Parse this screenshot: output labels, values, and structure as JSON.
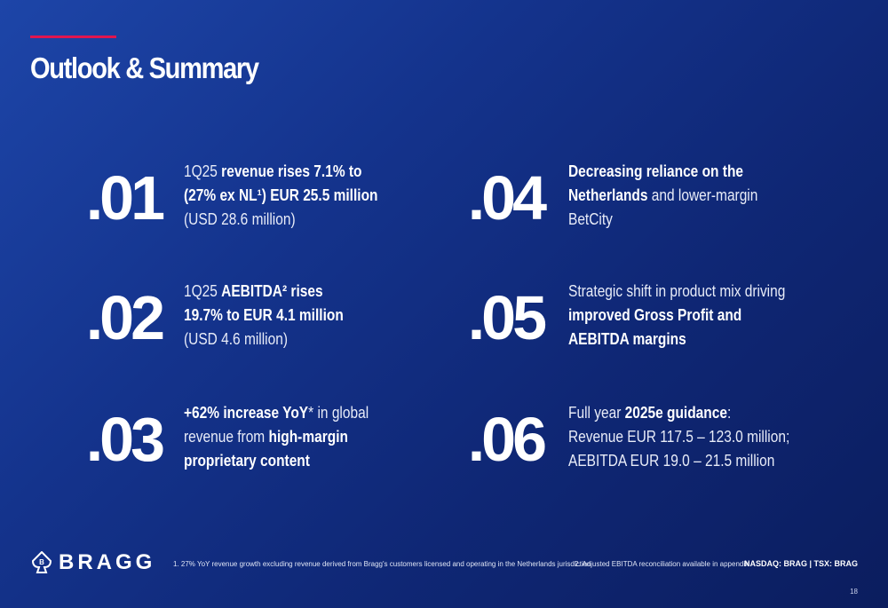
{
  "title": "Outlook & Summary",
  "items": [
    {
      "number": ".01",
      "lines": [
        [
          {
            "text": "1Q25 ",
            "bold": false
          },
          {
            "text": "revenue rises 7.1% to",
            "bold": true
          }
        ],
        [
          {
            "text": "(27% ex NL¹) EUR 25.5 million",
            "bold": true
          }
        ],
        [
          {
            "text": "(USD 28.6 million)",
            "bold": false
          }
        ]
      ]
    },
    {
      "number": ".02",
      "lines": [
        [
          {
            "text": "1Q25 ",
            "bold": false
          },
          {
            "text": "AEBITDA² rises",
            "bold": true
          }
        ],
        [
          {
            "text": "19.7% to EUR 4.1 million",
            "bold": true
          }
        ],
        [
          {
            "text": "(USD 4.6 million)",
            "bold": false
          }
        ]
      ]
    },
    {
      "number": ".03",
      "lines": [
        [
          {
            "text": "+62% increase YoY",
            "bold": true
          },
          {
            "text": "* in global",
            "bold": false
          }
        ],
        [
          {
            "text": "revenue from ",
            "bold": false
          },
          {
            "text": "high-margin",
            "bold": true
          }
        ],
        [
          {
            "text": "proprietary content",
            "bold": true
          }
        ]
      ]
    },
    {
      "number": ".04",
      "lines": [
        [
          {
            "text": "Decreasing reliance on the",
            "bold": true
          }
        ],
        [
          {
            "text": "Netherlands",
            "bold": true
          },
          {
            "text": " and lower-margin",
            "bold": false
          }
        ],
        [
          {
            "text": "BetCity",
            "bold": false
          }
        ]
      ]
    },
    {
      "number": ".05",
      "lines": [
        [
          {
            "text": "Strategic shift in product mix driving",
            "bold": false
          }
        ],
        [
          {
            "text": "improved Gross Profit and",
            "bold": true
          }
        ],
        [
          {
            "text": "AEBITDA margins",
            "bold": true
          }
        ]
      ]
    },
    {
      "number": ".06",
      "lines": [
        [
          {
            "text": "Full year ",
            "bold": false
          },
          {
            "text": "2025e guidance",
            "bold": true
          },
          {
            "text": ":",
            "bold": false
          }
        ],
        [
          {
            "text": "Revenue EUR 117.5 – 123.0 million;",
            "bold": false
          }
        ],
        [
          {
            "text": "AEBITDA EUR 19.0 – 21.5 million",
            "bold": false
          }
        ]
      ]
    }
  ],
  "footer": {
    "logo": "BRAGG",
    "note1": "1. 27% YoY revenue growth excluding revenue derived from Bragg's customers licensed and operating in the Netherlands jurisdiction",
    "note2": "2. Adjusted EBITDA reconciliation available in appendix",
    "ticker": "NASDAQ: BRAG | TSX: BRAG",
    "page": "18"
  }
}
